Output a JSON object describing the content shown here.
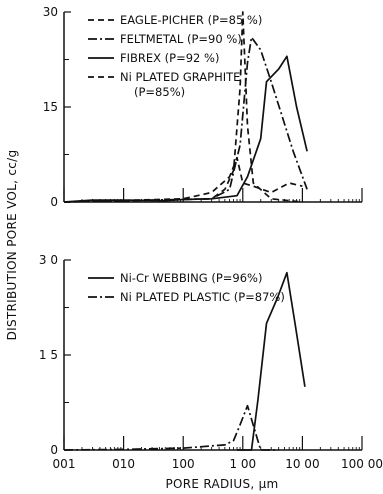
{
  "chart_data": [
    {
      "type": "line",
      "x_scale": "log",
      "xlim": [
        0.01,
        1000
      ],
      "ylim": [
        0,
        30
      ],
      "yticks": [
        {
          "value": 0,
          "label": "0"
        },
        {
          "value": 15,
          "label": "15"
        },
        {
          "value": 30,
          "label": "30"
        }
      ],
      "grid": false,
      "legend_placement": "top-center",
      "series": [
        {
          "name": "EAGLE-PICHER (P=85 %)",
          "style": "dashed",
          "points": [
            [
              0.01,
              0
            ],
            [
              3,
              0.5
            ],
            [
              5,
              2
            ],
            [
              7,
              5
            ],
            [
              9,
              18
            ],
            [
              10,
              30
            ],
            [
              12,
              12
            ],
            [
              15,
              3
            ],
            [
              30,
              0.5
            ],
            [
              100,
              0
            ]
          ]
        },
        {
          "name": "FELTMETAL (P=90 %)",
          "style": "dashdot",
          "points": [
            [
              0.01,
              0
            ],
            [
              3,
              0.5
            ],
            [
              6,
              2
            ],
            [
              8,
              7
            ],
            [
              9,
              9
            ],
            [
              12,
              22
            ],
            [
              14,
              26
            ],
            [
              20,
              24
            ],
            [
              30,
              19
            ],
            [
              70,
              8
            ],
            [
              120,
              2
            ]
          ]
        },
        {
          "name": "FIBREX (P=92 %)",
          "style": "solid",
          "points": [
            [
              0.01,
              0
            ],
            [
              0.03,
              0.3
            ],
            [
              0.1,
              0.3
            ],
            [
              0.5,
              0.2
            ],
            [
              1,
              0.4
            ],
            [
              3,
              0.5
            ],
            [
              8,
              1
            ],
            [
              12,
              4
            ],
            [
              20,
              10
            ],
            [
              25,
              19
            ],
            [
              40,
              21
            ],
            [
              55,
              23
            ],
            [
              80,
              15
            ],
            [
              120,
              8
            ]
          ]
        },
        {
          "name": "Ni PLATED GRAPHITE\n(P=85%)",
          "style": "dashed",
          "points": [
            [
              0.01,
              0
            ],
            [
              1,
              0.5
            ],
            [
              3,
              1.5
            ],
            [
              6,
              4
            ],
            [
              8,
              7
            ],
            [
              10,
              3
            ],
            [
              15,
              2.5
            ],
            [
              30,
              1.5
            ],
            [
              60,
              3
            ],
            [
              100,
              2.5
            ]
          ]
        }
      ]
    },
    {
      "type": "line",
      "x_scale": "log",
      "xlim": [
        0.01,
        1000
      ],
      "ylim": [
        0,
        30
      ],
      "yticks": [
        {
          "value": 0,
          "label": "0"
        },
        {
          "value": 15,
          "label": "1 5"
        },
        {
          "value": 30,
          "label": "3 0"
        }
      ],
      "grid": false,
      "legend_placement": "top-center",
      "series": [
        {
          "name": "Ni-Cr WEBBING (P=96%)",
          "style": "solid",
          "points": [
            [
              8,
              0
            ],
            [
              10,
              0
            ],
            [
              14,
              0
            ],
            [
              18,
              8
            ],
            [
              25,
              20
            ],
            [
              38,
              24
            ],
            [
              55,
              28
            ],
            [
              75,
              20
            ],
            [
              110,
              10
            ]
          ]
        },
        {
          "name": "Ni PLATED PLASTIC (P=87%)",
          "style": "dashdot",
          "points": [
            [
              0.01,
              0
            ],
            [
              0.1,
              0.1
            ],
            [
              1,
              0.3
            ],
            [
              5,
              0.8
            ],
            [
              7,
              1.5
            ],
            [
              9,
              4
            ],
            [
              12,
              7
            ],
            [
              16,
              3
            ],
            [
              20,
              0
            ],
            [
              40,
              0
            ]
          ]
        }
      ]
    }
  ],
  "x_ticks": [
    {
      "value": 0.01,
      "label": "001"
    },
    {
      "value": 0.1,
      "label": "010"
    },
    {
      "value": 1,
      "label": "100"
    },
    {
      "value": 10,
      "label": "1 00"
    },
    {
      "value": 100,
      "label": "10 00"
    },
    {
      "value": 1000,
      "label": "100 00"
    }
  ],
  "xlabel": "PORE RADIUS, μm",
  "ylabel": "DISTRIBUTION PORE VOL, cc/g"
}
